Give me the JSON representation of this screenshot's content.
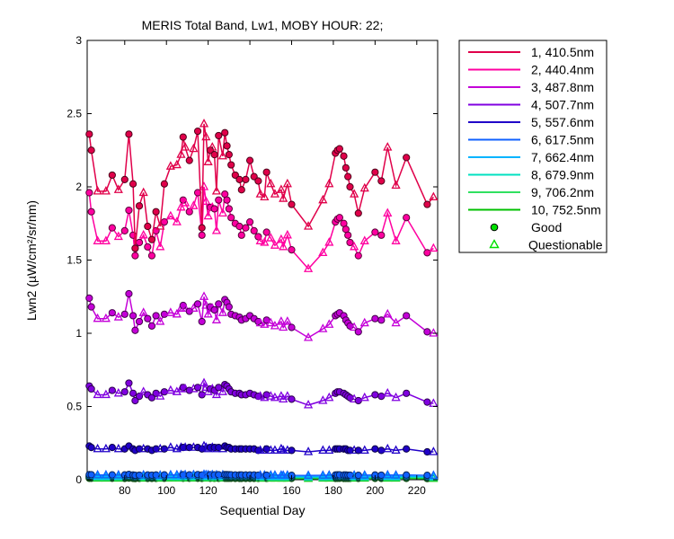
{
  "chart_data": {
    "type": "line",
    "title": "MERIS Total Band, Lw1, MOBY HOUR: 22;",
    "xlabel": "Sequential Day",
    "ylabel": "Lwn2 (µW/cm²/sr/nm)",
    "xlim": [
      62,
      230
    ],
    "ylim": [
      0,
      3
    ],
    "xticks": [
      80,
      100,
      120,
      140,
      160,
      180,
      200,
      220
    ],
    "yticks": [
      0,
      0.5,
      1,
      1.5,
      2,
      2.5,
      3
    ],
    "ytick_labels": [
      "0",
      "0.5",
      "1",
      "1.5",
      "2",
      "2.5",
      "3"
    ],
    "grid": false,
    "legend_position": "outside-right",
    "x": [
      63,
      64,
      67,
      71,
      74,
      77,
      80,
      82,
      84,
      85,
      87,
      89,
      91,
      93,
      95,
      97,
      99,
      102,
      105,
      107,
      108,
      109,
      111,
      113,
      115,
      117,
      118,
      119,
      120,
      121,
      122,
      123,
      124,
      125,
      127,
      128,
      129,
      130,
      131,
      133,
      135,
      136,
      138,
      140,
      142,
      144,
      145,
      147,
      148,
      150,
      152,
      155,
      156,
      158,
      160,
      168,
      175,
      178,
      181,
      182,
      183,
      185,
      186,
      187,
      188,
      190,
      192,
      195,
      200,
      203,
      206,
      210,
      215,
      225,
      228
    ],
    "series": [
      {
        "name": "1, 410.5nm",
        "color": "#e0004a",
        "values": [
          2.36,
          2.25,
          1.97,
          1.97,
          2.08,
          1.98,
          2.05,
          2.36,
          2.02,
          1.58,
          1.87,
          1.96,
          1.73,
          1.64,
          1.83,
          1.73,
          2.02,
          2.14,
          2.15,
          2.22,
          2.34,
          2.27,
          2.18,
          2.26,
          2.38,
          1.72,
          2.43,
          2.34,
          2.17,
          2.25,
          2.27,
          2.22,
          1.97,
          2.35,
          2.21,
          2.37,
          2.28,
          2.22,
          2.15,
          2.08,
          2.05,
          1.98,
          2.05,
          2.18,
          2.07,
          2.04,
          1.95,
          1.93,
          2.1,
          2.02,
          1.95,
          1.98,
          1.92,
          2.02,
          1.88,
          1.73,
          1.91,
          2.02,
          2.23,
          2.25,
          2.26,
          2.21,
          2.13,
          2.07,
          2.0,
          1.95,
          1.82,
          1.99,
          2.1,
          2.04,
          2.27,
          2.01,
          2.2,
          1.88,
          1.93
        ]
      },
      {
        "name": "2, 440.4nm",
        "color": "#ff00a0",
        "values": [
          1.96,
          1.83,
          1.63,
          1.63,
          1.72,
          1.66,
          1.7,
          1.84,
          1.67,
          1.53,
          1.62,
          1.67,
          1.59,
          1.53,
          1.7,
          1.59,
          1.76,
          1.8,
          1.76,
          1.86,
          1.91,
          1.89,
          1.83,
          1.87,
          1.96,
          1.67,
          2.0,
          1.9,
          1.8,
          1.86,
          1.86,
          1.85,
          1.7,
          1.91,
          1.82,
          1.95,
          1.91,
          1.85,
          1.79,
          1.75,
          1.73,
          1.67,
          1.72,
          1.76,
          1.7,
          1.66,
          1.63,
          1.62,
          1.69,
          1.65,
          1.6,
          1.64,
          1.59,
          1.67,
          1.57,
          1.44,
          1.55,
          1.62,
          1.76,
          1.78,
          1.79,
          1.75,
          1.71,
          1.67,
          1.62,
          1.59,
          1.53,
          1.63,
          1.69,
          1.67,
          1.82,
          1.63,
          1.79,
          1.55,
          1.58
        ]
      },
      {
        "name": "3, 487.8nm",
        "color": "#c400d8",
        "values": [
          1.24,
          1.18,
          1.1,
          1.1,
          1.14,
          1.11,
          1.13,
          1.27,
          1.12,
          1.02,
          1.08,
          1.14,
          1.1,
          1.05,
          1.12,
          1.08,
          1.13,
          1.14,
          1.13,
          1.17,
          1.19,
          1.17,
          1.15,
          1.17,
          1.2,
          1.08,
          1.25,
          1.19,
          1.13,
          1.18,
          1.17,
          1.16,
          1.09,
          1.2,
          1.14,
          1.23,
          1.21,
          1.18,
          1.13,
          1.12,
          1.11,
          1.09,
          1.1,
          1.12,
          1.1,
          1.08,
          1.07,
          1.06,
          1.09,
          1.07,
          1.05,
          1.08,
          1.04,
          1.08,
          1.04,
          0.97,
          1.03,
          1.06,
          1.12,
          1.13,
          1.14,
          1.12,
          1.09,
          1.07,
          1.05,
          1.04,
          1.01,
          1.07,
          1.1,
          1.09,
          1.13,
          1.07,
          1.12,
          1.01,
          1.0
        ]
      },
      {
        "name": "4, 507.7nm",
        "color": "#8000e0",
        "values": [
          0.64,
          0.62,
          0.58,
          0.58,
          0.61,
          0.59,
          0.6,
          0.66,
          0.59,
          0.54,
          0.57,
          0.6,
          0.58,
          0.56,
          0.59,
          0.57,
          0.6,
          0.61,
          0.6,
          0.62,
          0.63,
          0.62,
          0.61,
          0.62,
          0.63,
          0.58,
          0.66,
          0.63,
          0.6,
          0.62,
          0.62,
          0.61,
          0.58,
          0.63,
          0.6,
          0.65,
          0.64,
          0.62,
          0.6,
          0.59,
          0.59,
          0.58,
          0.58,
          0.59,
          0.58,
          0.57,
          0.57,
          0.56,
          0.58,
          0.57,
          0.56,
          0.57,
          0.55,
          0.57,
          0.55,
          0.51,
          0.54,
          0.56,
          0.59,
          0.6,
          0.6,
          0.59,
          0.58,
          0.57,
          0.56,
          0.55,
          0.54,
          0.56,
          0.58,
          0.57,
          0.59,
          0.56,
          0.59,
          0.53,
          0.52
        ]
      },
      {
        "name": "5, 557.6nm",
        "color": "#2000c8",
        "values": [
          0.23,
          0.22,
          0.21,
          0.21,
          0.22,
          0.21,
          0.21,
          0.23,
          0.21,
          0.2,
          0.21,
          0.21,
          0.21,
          0.2,
          0.21,
          0.21,
          0.21,
          0.22,
          0.21,
          0.22,
          0.22,
          0.22,
          0.22,
          0.22,
          0.22,
          0.21,
          0.23,
          0.22,
          0.21,
          0.22,
          0.22,
          0.22,
          0.21,
          0.22,
          0.21,
          0.23,
          0.22,
          0.22,
          0.21,
          0.21,
          0.21,
          0.21,
          0.21,
          0.21,
          0.21,
          0.2,
          0.2,
          0.2,
          0.21,
          0.2,
          0.2,
          0.21,
          0.2,
          0.2,
          0.2,
          0.19,
          0.2,
          0.2,
          0.21,
          0.21,
          0.21,
          0.21,
          0.21,
          0.2,
          0.2,
          0.2,
          0.2,
          0.2,
          0.21,
          0.2,
          0.21,
          0.2,
          0.21,
          0.19,
          0.19
        ]
      },
      {
        "name": "6, 617.5nm",
        "color": "#1060ff",
        "values": [
          0.035,
          0.034,
          0.032,
          0.032,
          0.033,
          0.032,
          0.033,
          0.036,
          0.032,
          0.03,
          0.031,
          0.032,
          0.032,
          0.031,
          0.032,
          0.031,
          0.033,
          0.033,
          0.033,
          0.034,
          0.034,
          0.034,
          0.033,
          0.034,
          0.035,
          0.032,
          0.036,
          0.034,
          0.033,
          0.034,
          0.034,
          0.033,
          0.032,
          0.034,
          0.033,
          0.035,
          0.035,
          0.034,
          0.033,
          0.032,
          0.032,
          0.032,
          0.032,
          0.032,
          0.032,
          0.031,
          0.031,
          0.031,
          0.031,
          0.031,
          0.031,
          0.031,
          0.03,
          0.031,
          0.03,
          0.029,
          0.03,
          0.031,
          0.032,
          0.033,
          0.033,
          0.032,
          0.032,
          0.031,
          0.031,
          0.031,
          0.03,
          0.031,
          0.032,
          0.031,
          0.032,
          0.031,
          0.032,
          0.03,
          0.029
        ]
      },
      {
        "name": "7, 662.4nm",
        "color": "#00b4ff",
        "values": [
          0.025,
          0.024,
          0.023,
          0.023,
          0.024,
          0.023,
          0.023,
          0.026,
          0.023,
          0.021,
          0.022,
          0.023,
          0.023,
          0.022,
          0.023,
          0.022,
          0.023,
          0.024,
          0.023,
          0.024,
          0.024,
          0.024,
          0.024,
          0.024,
          0.025,
          0.023,
          0.026,
          0.024,
          0.023,
          0.024,
          0.024,
          0.024,
          0.023,
          0.024,
          0.023,
          0.025,
          0.025,
          0.024,
          0.023,
          0.023,
          0.023,
          0.023,
          0.023,
          0.023,
          0.023,
          0.022,
          0.022,
          0.022,
          0.022,
          0.022,
          0.022,
          0.022,
          0.021,
          0.022,
          0.021,
          0.02,
          0.021,
          0.022,
          0.023,
          0.023,
          0.023,
          0.023,
          0.023,
          0.022,
          0.022,
          0.022,
          0.021,
          0.022,
          0.023,
          0.022,
          0.023,
          0.022,
          0.023,
          0.021,
          0.021
        ]
      },
      {
        "name": "8, 679.9nm",
        "color": "#00e0c0",
        "values": [
          0.022,
          0.021,
          0.02,
          0.02,
          0.021,
          0.02,
          0.02,
          0.023,
          0.02,
          0.019,
          0.02,
          0.02,
          0.02,
          0.019,
          0.02,
          0.02,
          0.02,
          0.021,
          0.02,
          0.021,
          0.021,
          0.021,
          0.021,
          0.021,
          0.022,
          0.02,
          0.023,
          0.021,
          0.02,
          0.021,
          0.021,
          0.021,
          0.02,
          0.021,
          0.02,
          0.022,
          0.022,
          0.021,
          0.02,
          0.02,
          0.02,
          0.02,
          0.02,
          0.02,
          0.02,
          0.019,
          0.019,
          0.019,
          0.02,
          0.019,
          0.019,
          0.019,
          0.019,
          0.019,
          0.019,
          0.018,
          0.019,
          0.019,
          0.02,
          0.02,
          0.02,
          0.02,
          0.02,
          0.02,
          0.019,
          0.019,
          0.019,
          0.019,
          0.02,
          0.019,
          0.02,
          0.019,
          0.02,
          0.018,
          0.018
        ]
      },
      {
        "name": "9, 706.2nm",
        "color": "#30e060",
        "values": [
          0.016,
          0.015,
          0.014,
          0.014,
          0.015,
          0.014,
          0.015,
          0.016,
          0.014,
          0.013,
          0.014,
          0.015,
          0.014,
          0.014,
          0.014,
          0.014,
          0.015,
          0.015,
          0.015,
          0.015,
          0.015,
          0.015,
          0.015,
          0.015,
          0.016,
          0.014,
          0.016,
          0.015,
          0.015,
          0.015,
          0.015,
          0.015,
          0.014,
          0.015,
          0.015,
          0.016,
          0.016,
          0.015,
          0.015,
          0.014,
          0.014,
          0.014,
          0.014,
          0.014,
          0.014,
          0.014,
          0.014,
          0.014,
          0.014,
          0.014,
          0.014,
          0.014,
          0.013,
          0.014,
          0.013,
          0.013,
          0.013,
          0.014,
          0.014,
          0.015,
          0.015,
          0.014,
          0.014,
          0.014,
          0.014,
          0.014,
          0.013,
          0.014,
          0.014,
          0.014,
          0.014,
          0.014,
          0.014,
          0.013,
          0.013
        ]
      },
      {
        "name": "10, 752.5nm",
        "color": "#00c000",
        "values": [
          0.01,
          0.01,
          0.009,
          0.009,
          0.01,
          0.009,
          0.009,
          0.011,
          0.009,
          0.008,
          0.009,
          0.009,
          0.009,
          0.009,
          0.009,
          0.009,
          0.01,
          0.01,
          0.01,
          0.01,
          0.01,
          0.01,
          0.01,
          0.01,
          0.01,
          0.009,
          0.011,
          0.01,
          0.01,
          0.01,
          0.01,
          0.01,
          0.009,
          0.01,
          0.01,
          0.01,
          0.01,
          0.01,
          0.01,
          0.009,
          0.009,
          0.009,
          0.009,
          0.009,
          0.009,
          0.009,
          0.009,
          0.009,
          0.009,
          0.009,
          0.009,
          0.009,
          0.009,
          0.009,
          0.009,
          0.008,
          0.009,
          0.009,
          0.009,
          0.01,
          0.01,
          0.009,
          0.009,
          0.009,
          0.009,
          0.009,
          0.009,
          0.009,
          0.009,
          0.009,
          0.009,
          0.009,
          0.009,
          0.008,
          0.008
        ]
      }
    ],
    "quality": [
      "good",
      "good",
      "questionable",
      "questionable",
      "good",
      "questionable",
      "good",
      "good",
      "good",
      "good",
      "good",
      "questionable",
      "good",
      "good",
      "good",
      "questionable",
      "good",
      "questionable",
      "questionable",
      "questionable",
      "good",
      "questionable",
      "good",
      "questionable",
      "good",
      "good",
      "questionable",
      "questionable",
      "questionable",
      "good",
      "questionable",
      "good",
      "questionable",
      "good",
      "questionable",
      "good",
      "good",
      "good",
      "good",
      "good",
      "good",
      "good",
      "good",
      "good",
      "good",
      "good",
      "questionable",
      "questionable",
      "good",
      "questionable",
      "questionable",
      "questionable",
      "questionable",
      "questionable",
      "good",
      "questionable",
      "questionable",
      "questionable",
      "good",
      "good",
      "good",
      "good",
      "good",
      "good",
      "good",
      "questionable",
      "good",
      "questionable",
      "good",
      "good",
      "questionable",
      "questionable",
      "good",
      "good",
      "questionable"
    ],
    "legend": {
      "good_label": "Good",
      "good_color": "#00e000",
      "questionable_label": "Questionable",
      "questionable_color": "#00e000"
    }
  }
}
